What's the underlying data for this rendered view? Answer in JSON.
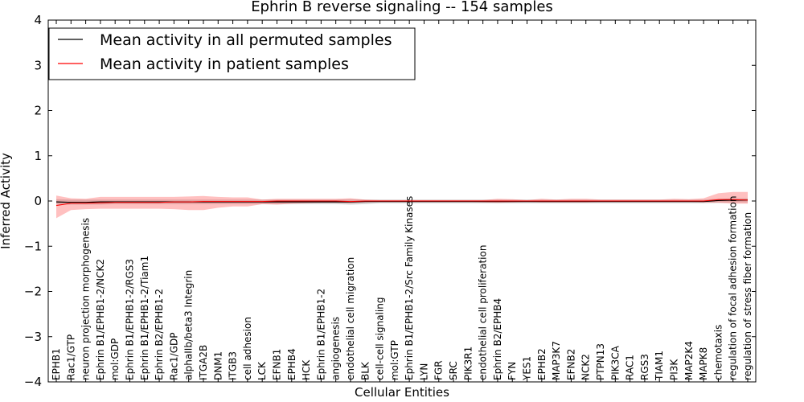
{
  "chart_data": {
    "type": "line",
    "title": "Ephrin B reverse signaling -- 154 samples",
    "xlabel": "Cellular Entities",
    "ylabel": "Inferred Activity",
    "ylim": [
      -4,
      4
    ],
    "yticks": [
      4,
      3,
      2,
      1,
      0,
      -1,
      -2,
      -3,
      -4
    ],
    "ytick_labels": [
      "4",
      "3",
      "2",
      "1",
      "0",
      "−1",
      "−2",
      "−3",
      "−4"
    ],
    "legend_position": "upper-left",
    "categories": [
      "EPHB1",
      "Rac1/GTP",
      "neuron projection morphogenesis",
      "Ephrin B1/EPHB1-2/NCK2",
      "mol:GDP",
      "Ephrin B1/EPHB1-2/RGS3",
      "Ephrin B1/EPHB1-2/Tiam1",
      "Ephrin B2/EPHB1-2",
      "Rac1/GDP",
      "alphaIIb/beta3 Integrin",
      "ITGA2B",
      "DNM1",
      "ITGB3",
      "cell adhesion",
      "LCK",
      "EFNB1",
      "EPHB4",
      "HCK",
      "Ephrin B1/EPHB1-2",
      "angiogenesis",
      "endothelial cell migration",
      "BLK",
      "cell-cell signaling",
      "mol:GTP",
      "Ephrin B1/EPHB1-2/Src Family Kinases",
      "LYN",
      "FGR",
      "SRC",
      "PIK3R1",
      "endothelial cell proliferation",
      "Ephrin B2/EPHB4",
      "FYN",
      "YES1",
      "EPHB2",
      "MAP3K7",
      "EFNB2",
      "NCK2",
      "PTPN13",
      "PIK3CA",
      "RAC1",
      "RGS3",
      "TIAM1",
      "PI3K",
      "MAP2K4",
      "MAPK8",
      "chemotaxis",
      "regulation of focal adhesion formation",
      "regulation of stress fiber formation"
    ],
    "series": [
      {
        "name": "Mean activity in all permuted samples",
        "color": "#000000",
        "values": [
          -0.02,
          -0.03,
          -0.03,
          -0.02,
          -0.02,
          -0.02,
          -0.02,
          -0.02,
          -0.02,
          -0.02,
          -0.02,
          -0.02,
          -0.02,
          -0.02,
          -0.02,
          -0.02,
          -0.02,
          -0.02,
          -0.02,
          -0.02,
          -0.02,
          -0.01,
          -0.01,
          -0.01,
          -0.01,
          -0.01,
          -0.01,
          -0.01,
          -0.01,
          -0.01,
          -0.01,
          -0.01,
          -0.01,
          -0.01,
          -0.01,
          -0.01,
          -0.01,
          -0.01,
          -0.01,
          -0.01,
          -0.01,
          -0.01,
          -0.01,
          -0.01,
          -0.01,
          0.01,
          0.02,
          0.02
        ],
        "band_lower": [
          -0.08,
          -0.08,
          -0.08,
          -0.08,
          -0.07,
          -0.07,
          -0.07,
          -0.07,
          -0.07,
          -0.07,
          -0.07,
          -0.07,
          -0.07,
          -0.07,
          -0.07,
          -0.07,
          -0.07,
          -0.07,
          -0.07,
          -0.07,
          -0.08,
          -0.07,
          -0.05,
          -0.05,
          -0.05,
          -0.05,
          -0.05,
          -0.05,
          -0.05,
          -0.05,
          -0.05,
          -0.05,
          -0.05,
          -0.05,
          -0.05,
          -0.05,
          -0.05,
          -0.05,
          -0.05,
          -0.05,
          -0.05,
          -0.05,
          -0.05,
          -0.05,
          -0.05,
          -0.04,
          -0.03,
          -0.03
        ],
        "band_upper": [
          0.04,
          0.03,
          0.03,
          0.03,
          0.03,
          0.03,
          0.03,
          0.03,
          0.03,
          0.03,
          0.03,
          0.03,
          0.03,
          0.03,
          0.03,
          0.03,
          0.03,
          0.03,
          0.03,
          0.03,
          0.04,
          0.03,
          0.03,
          0.03,
          0.03,
          0.03,
          0.03,
          0.03,
          0.03,
          0.03,
          0.03,
          0.03,
          0.03,
          0.03,
          0.03,
          0.03,
          0.03,
          0.03,
          0.03,
          0.03,
          0.03,
          0.03,
          0.03,
          0.03,
          0.03,
          0.05,
          0.06,
          0.06
        ]
      },
      {
        "name": "Mean activity in patient samples",
        "color": "#ff0000",
        "values": [
          -0.1,
          -0.05,
          -0.05,
          -0.04,
          -0.03,
          -0.03,
          -0.03,
          -0.03,
          -0.02,
          -0.02,
          -0.01,
          -0.01,
          -0.01,
          -0.01,
          -0.01,
          0.0,
          0.0,
          0.0,
          0.0,
          0.0,
          -0.01,
          0.0,
          0.0,
          0.0,
          0.0,
          0.0,
          0.0,
          0.0,
          0.0,
          0.0,
          0.0,
          0.0,
          0.0,
          0.0,
          0.0,
          0.0,
          0.0,
          0.0,
          0.0,
          0.0,
          0.0,
          0.0,
          0.0,
          0.0,
          0.0,
          0.03,
          0.03,
          0.02
        ],
        "band_lower": [
          -0.38,
          -0.2,
          -0.18,
          -0.17,
          -0.17,
          -0.17,
          -0.17,
          -0.17,
          -0.18,
          -0.2,
          -0.2,
          -0.15,
          -0.12,
          -0.12,
          -0.07,
          -0.08,
          -0.06,
          -0.05,
          -0.04,
          -0.04,
          -0.05,
          -0.03,
          -0.02,
          -0.02,
          -0.02,
          -0.02,
          -0.02,
          -0.02,
          -0.02,
          -0.03,
          -0.04,
          -0.03,
          -0.02,
          -0.03,
          -0.03,
          -0.03,
          -0.03,
          -0.02,
          -0.02,
          -0.02,
          -0.02,
          -0.02,
          -0.02,
          -0.02,
          -0.03,
          -0.04,
          -0.06,
          -0.06
        ],
        "band_upper": [
          0.12,
          0.06,
          0.05,
          0.09,
          0.09,
          0.09,
          0.09,
          0.09,
          0.09,
          0.1,
          0.11,
          0.09,
          0.08,
          0.08,
          0.03,
          0.05,
          0.05,
          0.05,
          0.05,
          0.05,
          0.06,
          0.03,
          0.02,
          0.02,
          0.02,
          0.02,
          0.02,
          0.02,
          0.02,
          0.02,
          0.05,
          0.04,
          0.02,
          0.05,
          0.03,
          0.05,
          0.05,
          0.03,
          0.03,
          0.03,
          0.03,
          0.03,
          0.05,
          0.04,
          0.06,
          0.17,
          0.2,
          0.2
        ]
      }
    ]
  }
}
